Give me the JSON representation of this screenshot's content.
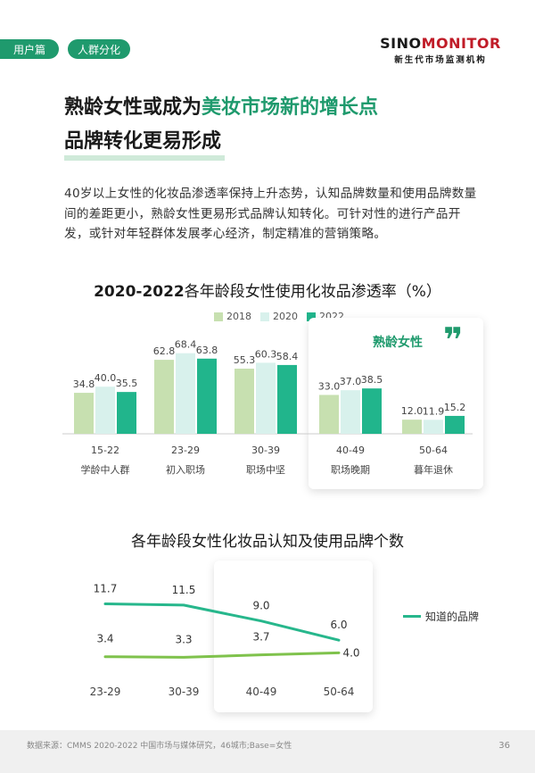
{
  "header": {
    "tag_user": "用户篇",
    "tag_segment": "人群分化",
    "logo_en_part1": "SINO",
    "logo_en_part2": "MONITOR",
    "logo_cn": "新生代市场监测机构"
  },
  "headline": {
    "line1_part1": "熟龄女性或成为",
    "line1_highlight": "美妆市场新的增长点",
    "line2": "品牌转化更易形成"
  },
  "body": {
    "text": "40岁以上女性的化妆品渗透率保持上升态势，认知品牌数量和使用品牌数量间的差距更小，熟龄女性更易形式品牌认知转化。可针对性的进行产品开发，或针对年轻群体发展孝心经济，制定精准的营销策略。"
  },
  "chart1": {
    "title_bold": "2020-2022",
    "title_rest": "各年龄段女性使用化妆品渗透率（%）",
    "highlight_label": "熟龄女性",
    "quote_glyph": "❞"
  },
  "chart2": {
    "title": "各年龄段女性化妆品认知及使用品牌个数"
  },
  "footer": {
    "source": "数据来源：CMMS 2020-2022 中国市场与媒体研究，46城市;Base=女性",
    "page": "36"
  },
  "colors": {
    "brand_green": "#1f9a6d",
    "s2018": "#c7e0b0",
    "s2020": "#d8f1ec",
    "s2022": "#21b58c",
    "line_known": "#27b78c",
    "line_used": "#7fc24c"
  },
  "chart_data": [
    {
      "type": "bar",
      "title": "2020-2022各年龄段女性使用化妆品渗透率（%）",
      "categories": [
        "15-22",
        "23-29",
        "30-39",
        "40-49",
        "50-64"
      ],
      "sublabels": [
        "学龄中人群",
        "初入职场",
        "职场中坚",
        "职场晚期",
        "暮年退休"
      ],
      "series": [
        {
          "name": "2018",
          "values": [
            34.8,
            62.8,
            55.3,
            33.0,
            12.0
          ]
        },
        {
          "name": "2020",
          "values": [
            40.0,
            68.4,
            60.3,
            37.0,
            11.9
          ]
        },
        {
          "name": "2022",
          "values": [
            35.5,
            63.8,
            58.4,
            38.5,
            15.2
          ]
        }
      ],
      "ylim": [
        0,
        80
      ],
      "legend": "top-center"
    },
    {
      "type": "line",
      "title": "各年龄段女性化妆品认知及使用品牌个数",
      "categories": [
        "23-29",
        "30-39",
        "40-49",
        "50-64"
      ],
      "series": [
        {
          "name": "知道的品牌",
          "values": [
            11.7,
            11.5,
            9.0,
            6.0
          ]
        },
        {
          "name": "",
          "values": [
            3.4,
            3.3,
            3.7,
            4.0
          ]
        }
      ],
      "legend": "right"
    }
  ]
}
